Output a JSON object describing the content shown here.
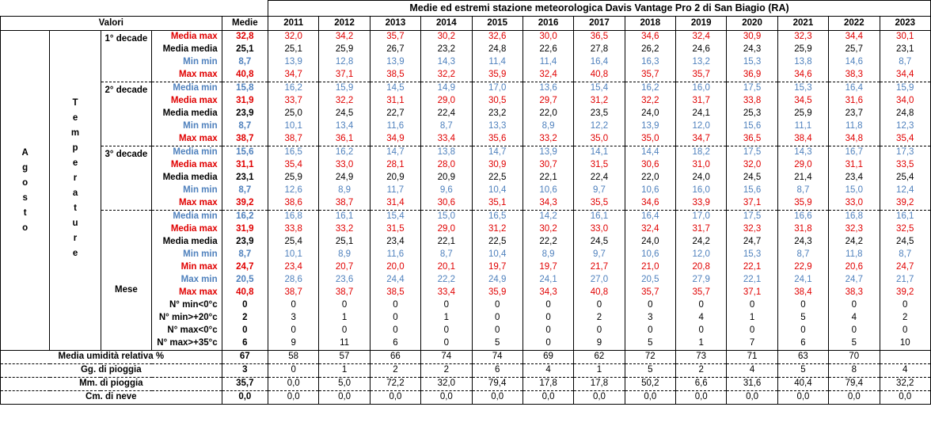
{
  "title": "Medie ed estremi stazione meteorologica Davis Vantage Pro 2 di San Biagio (RA)",
  "valori_label": "Valori",
  "medie_label": "Medie",
  "years": [
    "2011",
    "2012",
    "2013",
    "2014",
    "2015",
    "2016",
    "2017",
    "2018",
    "2019",
    "2020",
    "2021",
    "2022",
    "2023"
  ],
  "month_letters": [
    "A",
    "g",
    "o",
    "s",
    "t",
    "o"
  ],
  "temp_letters": [
    "T",
    "e",
    "m",
    "p",
    "e",
    "r",
    "a",
    "t",
    "u",
    "r",
    "e"
  ],
  "sections": [
    {
      "label": "1° decade",
      "rows": [
        {
          "label": "Media max",
          "color": "red",
          "medie": "32,8",
          "values": [
            "32,0",
            "34,2",
            "35,7",
            "30,2",
            "32,6",
            "30,0",
            "36,5",
            "34,6",
            "32,4",
            "30,9",
            "32,3",
            "34,4",
            "30,1"
          ]
        },
        {
          "label": "Media media",
          "color": "black",
          "medie": "25,1",
          "values": [
            "25,1",
            "25,9",
            "26,7",
            "23,2",
            "24,8",
            "22,6",
            "27,8",
            "26,2",
            "24,6",
            "24,3",
            "25,9",
            "25,7",
            "23,1"
          ]
        },
        {
          "label": "Min min",
          "color": "blue",
          "medie": "8,7",
          "values": [
            "13,9",
            "12,8",
            "13,9",
            "14,3",
            "11,4",
            "11,4",
            "16,4",
            "16,3",
            "13,2",
            "15,3",
            "13,8",
            "14,6",
            "8,7"
          ]
        },
        {
          "label": "Max max",
          "color": "red",
          "medie": "40,8",
          "values": [
            "34,7",
            "37,1",
            "38,5",
            "32,2",
            "35,9",
            "32,4",
            "40,8",
            "35,7",
            "35,7",
            "36,9",
            "34,6",
            "38,3",
            "34,4"
          ]
        }
      ]
    },
    {
      "label": "2° decade",
      "rows": [
        {
          "label": "Media min",
          "color": "blue",
          "medie": "15,8",
          "values": [
            "16,2",
            "15,9",
            "14,5",
            "14,9",
            "17,0",
            "13,6",
            "15,4",
            "16,2",
            "16,0",
            "17,5",
            "15,3",
            "16,4",
            "15,9"
          ]
        },
        {
          "label": "Media max",
          "color": "red",
          "medie": "31,9",
          "values": [
            "33,7",
            "32,2",
            "31,1",
            "29,0",
            "30,5",
            "29,7",
            "31,2",
            "32,2",
            "31,7",
            "33,8",
            "34,5",
            "31,6",
            "34,0"
          ]
        },
        {
          "label": "Media media",
          "color": "black",
          "medie": "23,9",
          "values": [
            "25,0",
            "24,5",
            "22,7",
            "22,4",
            "23,2",
            "22,0",
            "23,5",
            "24,0",
            "24,1",
            "25,3",
            "25,9",
            "23,7",
            "24,8"
          ]
        },
        {
          "label": "Min min",
          "color": "blue",
          "medie": "8,7",
          "values": [
            "10,1",
            "13,4",
            "11,6",
            "8,7",
            "13,3",
            "8,9",
            "12,2",
            "13,9",
            "12,0",
            "15,6",
            "11,1",
            "11,8",
            "12,3"
          ]
        },
        {
          "label": "Max max",
          "color": "red",
          "medie": "38,7",
          "values": [
            "38,7",
            "36,1",
            "34,9",
            "33,4",
            "35,6",
            "33,2",
            "35,0",
            "35,0",
            "34,7",
            "36,5",
            "38,4",
            "34,8",
            "35,4"
          ]
        }
      ]
    },
    {
      "label": "3° decade",
      "rows": [
        {
          "label": "Media min",
          "color": "blue",
          "medie": "15,6",
          "values": [
            "16,5",
            "16,2",
            "14,7",
            "13,8",
            "14,7",
            "13,9",
            "14,1",
            "14,4",
            "18,2",
            "17,5",
            "14,3",
            "16,7",
            "17,3"
          ]
        },
        {
          "label": "Media max",
          "color": "red",
          "medie": "31,1",
          "values": [
            "35,4",
            "33,0",
            "28,1",
            "28,0",
            "30,9",
            "30,7",
            "31,5",
            "30,6",
            "31,0",
            "32,0",
            "29,0",
            "31,1",
            "33,5"
          ]
        },
        {
          "label": "Media media",
          "color": "black",
          "medie": "23,1",
          "values": [
            "25,9",
            "24,9",
            "20,9",
            "20,9",
            "22,5",
            "22,1",
            "22,4",
            "22,0",
            "24,0",
            "24,5",
            "21,4",
            "23,4",
            "25,4"
          ]
        },
        {
          "label": "Min min",
          "color": "blue",
          "medie": "8,7",
          "values": [
            "12,6",
            "8,9",
            "11,7",
            "9,6",
            "10,4",
            "10,6",
            "9,7",
            "10,6",
            "16,0",
            "15,6",
            "8,7",
            "15,0",
            "12,4"
          ]
        },
        {
          "label": "Max max",
          "color": "red",
          "medie": "39,2",
          "values": [
            "38,6",
            "38,7",
            "31,4",
            "30,6",
            "35,1",
            "34,3",
            "35,5",
            "34,6",
            "33,9",
            "37,1",
            "35,9",
            "33,0",
            "39,2"
          ]
        }
      ]
    },
    {
      "label": "Mese",
      "rows": [
        {
          "label": "Media min",
          "color": "blue",
          "medie": "16,2",
          "values": [
            "16,8",
            "16,1",
            "15,4",
            "15,0",
            "16,5",
            "14,2",
            "16,1",
            "16,4",
            "17,0",
            "17,5",
            "16,6",
            "16,8",
            "16,1"
          ]
        },
        {
          "label": "Media max",
          "color": "red",
          "medie": "31,9",
          "values": [
            "33,8",
            "33,2",
            "31,5",
            "29,0",
            "31,2",
            "30,2",
            "33,0",
            "32,4",
            "31,7",
            "32,3",
            "31,8",
            "32,3",
            "32,5"
          ]
        },
        {
          "label": "Media media",
          "color": "black",
          "medie": "23,9",
          "values": [
            "25,4",
            "25,1",
            "23,4",
            "22,1",
            "22,5",
            "22,2",
            "24,5",
            "24,0",
            "24,2",
            "24,7",
            "24,3",
            "24,2",
            "24,5"
          ]
        },
        {
          "label": "Min min",
          "color": "blue",
          "medie": "8,7",
          "values": [
            "10,1",
            "8,9",
            "11,6",
            "8,7",
            "10,4",
            "8,9",
            "9,7",
            "10,6",
            "12,0",
            "15,3",
            "8,7",
            "11,8",
            "8,7"
          ]
        },
        {
          "label": "Min max",
          "color": "red",
          "medie": "24,7",
          "values": [
            "23,4",
            "20,7",
            "20,0",
            "20,1",
            "19,7",
            "19,7",
            "21,7",
            "21,0",
            "20,8",
            "22,1",
            "22,9",
            "20,6",
            "24,7"
          ]
        },
        {
          "label": "Max min",
          "color": "blue",
          "medie": "20,5",
          "values": [
            "28,6",
            "23,6",
            "24,4",
            "22,2",
            "24,9",
            "24,1",
            "27,0",
            "20,5",
            "27,9",
            "22,1",
            "24,1",
            "24,7",
            "21,7"
          ]
        },
        {
          "label": "Max max",
          "color": "red",
          "medie": "40,8",
          "values": [
            "38,7",
            "38,7",
            "38,5",
            "33,4",
            "35,9",
            "34,3",
            "40,8",
            "35,7",
            "35,7",
            "37,1",
            "38,4",
            "38,3",
            "39,2"
          ]
        },
        {
          "label": "N° min<0°c",
          "color": "black",
          "medie": "0",
          "values": [
            "0",
            "0",
            "0",
            "0",
            "0",
            "0",
            "0",
            "0",
            "0",
            "0",
            "0",
            "0",
            "0"
          ]
        },
        {
          "label": "N° min>+20°c",
          "color": "black",
          "medie": "2",
          "values": [
            "3",
            "1",
            "0",
            "1",
            "0",
            "0",
            "2",
            "3",
            "4",
            "1",
            "5",
            "4",
            "2"
          ]
        },
        {
          "label": "N° max<0°c",
          "color": "black",
          "medie": "0",
          "values": [
            "0",
            "0",
            "0",
            "0",
            "0",
            "0",
            "0",
            "0",
            "0",
            "0",
            "0",
            "0",
            "0"
          ]
        },
        {
          "label": "N° max>+35°c",
          "color": "black",
          "medie": "6",
          "values": [
            "9",
            "11",
            "6",
            "0",
            "5",
            "0",
            "9",
            "5",
            "1",
            "7",
            "6",
            "5",
            "10"
          ]
        }
      ]
    }
  ],
  "summary": [
    {
      "label": "Media umidità relativa %",
      "medie": "67",
      "values": [
        "58",
        "57",
        "66",
        "74",
        "74",
        "69",
        "62",
        "72",
        "73",
        "71",
        "63",
        "70",
        ""
      ]
    },
    {
      "label": "Gg. di pioggia",
      "medie": "3",
      "values": [
        "0",
        "1",
        "2",
        "2",
        "6",
        "4",
        "1",
        "5",
        "2",
        "4",
        "5",
        "8",
        "4"
      ]
    },
    {
      "label": "Mm. di pioggia",
      "medie": "35,7",
      "values": [
        "0,0",
        "5,0",
        "72,2",
        "32,0",
        "79,4",
        "17,8",
        "17,8",
        "50,2",
        "6,6",
        "31,6",
        "40,4",
        "79,4",
        "32,2"
      ]
    },
    {
      "label": "Cm. di neve",
      "medie": "0,0",
      "values": [
        "0,0",
        "0,0",
        "0,0",
        "0,0",
        "0,0",
        "0,0",
        "0,0",
        "0,0",
        "0,0",
        "0,0",
        "0,0",
        "0,0",
        "0,0"
      ]
    }
  ]
}
